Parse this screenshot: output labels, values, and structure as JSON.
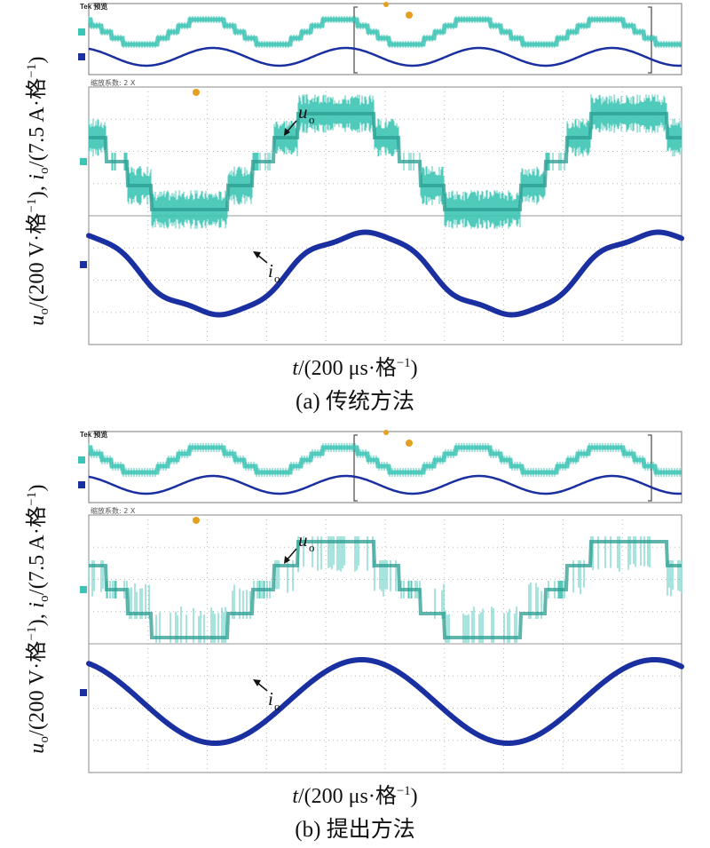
{
  "panels": [
    {
      "id": "a",
      "caption": "(a) 传统方法",
      "ylabel_text": {
        "u": "u",
        "o1": "o",
        "mid": "/(200 V·格",
        "sup": "−1",
        "sep": "), ",
        "i": "i",
        "o2": "o",
        "end": "/(7.5 A·格",
        "sup2": "−1",
        "close": ")"
      },
      "xlabel_text": {
        "t": "t",
        "rest": "/(200 μs·格",
        "sup": "−1",
        "close": ")"
      },
      "overview_title": "Tek 预览",
      "zoom_text": "缩放系数: 2 X",
      "annotations": {
        "voltage": "u",
        "voltage_sub": "o",
        "current": "i",
        "current_sub": "o"
      },
      "method": "traditional"
    },
    {
      "id": "b",
      "caption": "(b) 提出方法",
      "ylabel_text": {
        "u": "u",
        "o1": "o",
        "mid": "/(200 V·格",
        "sup": "−1",
        "sep": "), ",
        "i": "i",
        "o2": "o",
        "end": "/(7.5 A·格",
        "sup2": "−1",
        "close": ")"
      },
      "xlabel_text": {
        "t": "t",
        "rest": "/(200 μs·格",
        "sup": "−1",
        "close": ")"
      },
      "overview_title": "Tek 预览",
      "zoom_text": "缩放系数: 2 X",
      "annotations": {
        "voltage": "u",
        "voltage_sub": "o",
        "current": "i",
        "current_sub": "o"
      },
      "method": "proposed"
    }
  ],
  "chart_data": [
    {
      "type": "line",
      "title": "(a) 传统方法",
      "xlabel": "t/(200 μs·格−1)",
      "ylabel": "uo/(200 V·格−1), io/(7.5 A·格−1)",
      "x_divisions": 10,
      "y_divisions": 8,
      "fundamental_period_div": 3.85,
      "series": [
        {
          "name": "uo",
          "shape": "five-level staircase",
          "levels_div": [
            -2,
            -1,
            0,
            1,
            2
          ],
          "color": "#3cc4b4"
        },
        {
          "name": "io",
          "shape": "sinusoid",
          "peak_div": 1.65,
          "color": "#1a2fa0"
        }
      ],
      "grid": true,
      "colors": {
        "voltage": "#3cc4b4",
        "current": "#1a2fa0"
      }
    },
    {
      "type": "line",
      "title": "(b) 提出方法",
      "xlabel": "t/(200 μs·格−1)",
      "ylabel": "uo/(200 V·格−1), io/(7.5 A·格−1)",
      "x_divisions": 10,
      "y_divisions": 8,
      "fundamental_period_div": 3.85,
      "series": [
        {
          "name": "uo",
          "shape": "five-level staircase",
          "levels_div": [
            -2,
            -1,
            0,
            1,
            2
          ],
          "color": "#3cc4b4"
        },
        {
          "name": "io",
          "shape": "sinusoid",
          "peak_div": 1.65,
          "color": "#1a2fa0"
        }
      ],
      "grid": true,
      "colors": {
        "voltage": "#3cc4b4",
        "current": "#1a2fa0"
      }
    }
  ]
}
